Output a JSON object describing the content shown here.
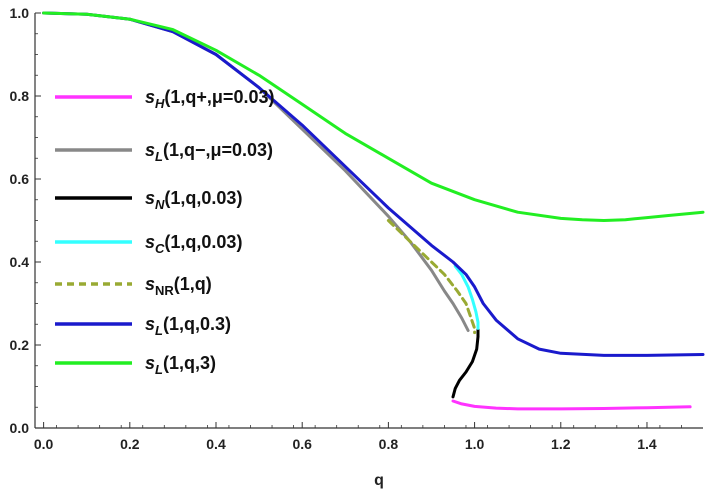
{
  "chart_data": {
    "type": "line",
    "xlabel": "q",
    "ylabel": "",
    "xlim": [
      -0.02,
      1.53
    ],
    "ylim": [
      0.0,
      1.0
    ],
    "x_ticks": [
      "0.0",
      "0.2",
      "0.4",
      "0.6",
      "0.8",
      "1.0",
      "1.2",
      "1.4"
    ],
    "y_ticks": [
      "0.0",
      "0.2",
      "0.4",
      "0.6",
      "0.8",
      "1.0"
    ],
    "legend_position": "left-middle",
    "series": [
      {
        "name": "s_H(1,q+,μ=0.03)",
        "legend": {
          "base": "s",
          "sub": "H",
          "rest": "(1,q+,μ=0.03)"
        },
        "color": "#ff33ff",
        "dash": "none",
        "width": 3,
        "points": [
          [
            0.95,
            0.065
          ],
          [
            0.97,
            0.058
          ],
          [
            1.0,
            0.052
          ],
          [
            1.05,
            0.048
          ],
          [
            1.1,
            0.046
          ],
          [
            1.2,
            0.046
          ],
          [
            1.3,
            0.047
          ],
          [
            1.4,
            0.049
          ],
          [
            1.5,
            0.051
          ]
        ]
      },
      {
        "name": "s_L(1,q−,μ=0.03)",
        "legend": {
          "base": "s",
          "sub": "L",
          "rest": "(1,q−,μ=0.03)"
        },
        "color": "#888888",
        "dash": "none",
        "width": 3,
        "points": [
          [
            0.0,
            1.0
          ],
          [
            0.1,
            0.997
          ],
          [
            0.2,
            0.985
          ],
          [
            0.3,
            0.955
          ],
          [
            0.4,
            0.9
          ],
          [
            0.5,
            0.82
          ],
          [
            0.6,
            0.72
          ],
          [
            0.7,
            0.62
          ],
          [
            0.8,
            0.51
          ],
          [
            0.85,
            0.45
          ],
          [
            0.9,
            0.38
          ],
          [
            0.93,
            0.33
          ],
          [
            0.95,
            0.3
          ],
          [
            0.97,
            0.265
          ],
          [
            0.985,
            0.235
          ]
        ]
      },
      {
        "name": "s_N(1,q,0.03)",
        "legend": {
          "base": "s",
          "sub": "N",
          "rest": "(1,q,0.03)"
        },
        "color": "#000000",
        "dash": "none",
        "width": 3,
        "points": [
          [
            0.95,
            0.075
          ],
          [
            0.955,
            0.095
          ],
          [
            0.965,
            0.115
          ],
          [
            0.98,
            0.135
          ],
          [
            0.995,
            0.16
          ],
          [
            1.005,
            0.19
          ],
          [
            1.008,
            0.22
          ],
          [
            1.008,
            0.24
          ]
        ]
      },
      {
        "name": "s_C(1,q,0.03)",
        "legend": {
          "base": "s",
          "sub": "C",
          "rest": "(1,q,0.03)"
        },
        "color": "#33ffff",
        "dash": "none",
        "width": 3,
        "points": [
          [
            0.955,
            0.39
          ],
          [
            0.97,
            0.37
          ],
          [
            0.985,
            0.34
          ],
          [
            0.995,
            0.31
          ],
          [
            1.003,
            0.28
          ],
          [
            1.008,
            0.255
          ],
          [
            1.008,
            0.24
          ]
        ]
      },
      {
        "name": "s_NR(1,q)",
        "legend": {
          "base": "s",
          "sub": "NR",
          "rest": "(1,q)"
        },
        "color": "#99aa33",
        "dash": "7,5",
        "width": 3,
        "points": [
          [
            0.8,
            0.5
          ],
          [
            0.85,
            0.45
          ],
          [
            0.9,
            0.4
          ],
          [
            0.93,
            0.37
          ],
          [
            0.96,
            0.33
          ],
          [
            0.98,
            0.3
          ],
          [
            0.99,
            0.27
          ],
          [
            1.0,
            0.24
          ],
          [
            1.0,
            0.23
          ]
        ]
      },
      {
        "name": "s_L(1,q,0.3)",
        "legend": {
          "base": "s",
          "sub": "L",
          "rest": "(1,q,0.3)"
        },
        "color": "#1a1acc",
        "dash": "none",
        "width": 3,
        "points": [
          [
            0.0,
            1.0
          ],
          [
            0.1,
            0.997
          ],
          [
            0.2,
            0.985
          ],
          [
            0.3,
            0.955
          ],
          [
            0.4,
            0.9
          ],
          [
            0.5,
            0.82
          ],
          [
            0.6,
            0.73
          ],
          [
            0.7,
            0.63
          ],
          [
            0.8,
            0.53
          ],
          [
            0.9,
            0.44
          ],
          [
            0.95,
            0.4
          ],
          [
            0.98,
            0.37
          ],
          [
            1.0,
            0.34
          ],
          [
            1.02,
            0.3
          ],
          [
            1.05,
            0.26
          ],
          [
            1.1,
            0.215
          ],
          [
            1.15,
            0.19
          ],
          [
            1.2,
            0.18
          ],
          [
            1.3,
            0.175
          ],
          [
            1.4,
            0.175
          ],
          [
            1.53,
            0.177
          ]
        ]
      },
      {
        "name": "s_L(1,q,3)",
        "legend": {
          "base": "s",
          "sub": "L",
          "rest": "(1,q,3)"
        },
        "color": "#22ee22",
        "dash": "none",
        "width": 3,
        "points": [
          [
            0.0,
            1.0
          ],
          [
            0.1,
            0.997
          ],
          [
            0.2,
            0.985
          ],
          [
            0.3,
            0.96
          ],
          [
            0.4,
            0.91
          ],
          [
            0.5,
            0.85
          ],
          [
            0.6,
            0.78
          ],
          [
            0.7,
            0.71
          ],
          [
            0.8,
            0.65
          ],
          [
            0.9,
            0.59
          ],
          [
            1.0,
            0.55
          ],
          [
            1.1,
            0.52
          ],
          [
            1.2,
            0.505
          ],
          [
            1.25,
            0.502
          ],
          [
            1.3,
            0.5
          ],
          [
            1.35,
            0.502
          ],
          [
            1.4,
            0.507
          ],
          [
            1.45,
            0.512
          ],
          [
            1.53,
            0.52
          ]
        ]
      }
    ]
  }
}
